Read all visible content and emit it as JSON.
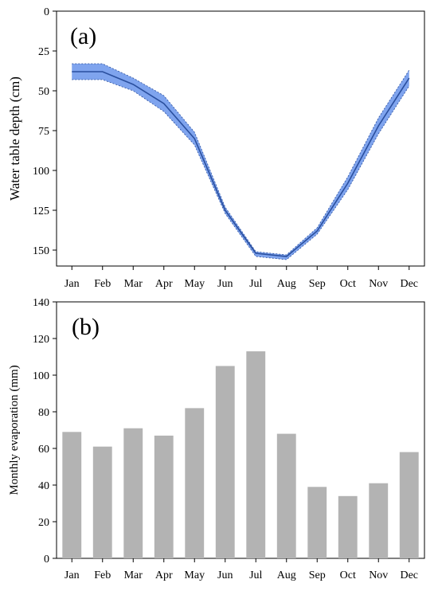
{
  "chart_data": [
    {
      "type": "line",
      "panel_label": "(a)",
      "title": "",
      "xlabel": "",
      "ylabel": "Water table depth (cm)",
      "categories": [
        "Jan",
        "Feb",
        "Mar",
        "Apr",
        "May",
        "Jun",
        "Jul",
        "Aug",
        "Sep",
        "Oct",
        "Nov",
        "Dec"
      ],
      "y_inverted": true,
      "ylim": [
        0,
        160
      ],
      "yticks": [
        0,
        25,
        50,
        75,
        100,
        125,
        150
      ],
      "series": [
        {
          "values": [
            38,
            38,
            46,
            58,
            80,
            125,
            152,
            154,
            138,
            108,
            72,
            42
          ],
          "band_lower": [
            33,
            33,
            42,
            53,
            76,
            123,
            151,
            153,
            136,
            104,
            67,
            37
          ],
          "band_upper": [
            43,
            43,
            50,
            63,
            84,
            127,
            154,
            156,
            140,
            112,
            77,
            47
          ],
          "line_color": "#2a4f9e",
          "band_color": "#7fa4ee"
        }
      ],
      "grid": false,
      "legend": "none"
    },
    {
      "type": "bar",
      "panel_label": "(b)",
      "title": "",
      "xlabel": "",
      "ylabel": "Monthly evaporation (mm)",
      "categories": [
        "Jan",
        "Feb",
        "Mar",
        "Apr",
        "May",
        "Jun",
        "Jul",
        "Aug",
        "Sep",
        "Oct",
        "Nov",
        "Dec"
      ],
      "values": [
        69,
        61,
        71,
        67,
        82,
        105,
        113,
        68,
        39,
        34,
        41,
        58
      ],
      "ylim": [
        0,
        140
      ],
      "yticks": [
        0,
        20,
        40,
        60,
        80,
        100,
        120,
        140
      ],
      "bar_color": "#b3b3b3",
      "grid": false,
      "legend": "none"
    }
  ]
}
